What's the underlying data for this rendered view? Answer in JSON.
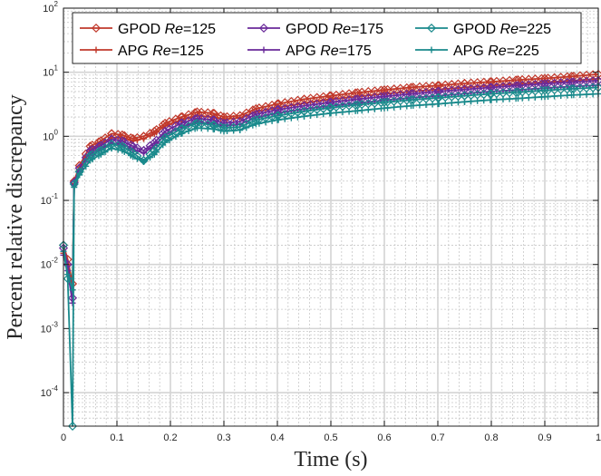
{
  "chart_data": {
    "type": "line",
    "title": "",
    "xlabel": "Time (s)",
    "ylabel": "Percent relative discrepancy",
    "xscale": "linear",
    "yscale": "log",
    "xlim": [
      0,
      1
    ],
    "ylim": [
      3e-05,
      100
    ],
    "grid": true,
    "minor_grid": true,
    "legend_position": "top",
    "legend_columns": 3,
    "x_ticks": [
      0,
      0.1,
      0.2,
      0.3,
      0.4,
      0.5,
      0.6,
      0.7,
      0.8,
      0.9,
      1
    ],
    "x_tick_labels": [
      "0",
      "0.1",
      "0.2",
      "0.3",
      "0.4",
      "0.5",
      "0.6",
      "0.7",
      "0.8",
      "0.9",
      "1"
    ],
    "y_ticks": [
      {
        "value": 0.0001,
        "base": "10",
        "exp": "-4"
      },
      {
        "value": 0.001,
        "base": "10",
        "exp": "-3"
      },
      {
        "value": 0.01,
        "base": "10",
        "exp": "-2"
      },
      {
        "value": 0.1,
        "base": "10",
        "exp": "-1"
      },
      {
        "value": 1,
        "base": "10",
        "exp": "0"
      },
      {
        "value": 10,
        "base": "10",
        "exp": "1"
      },
      {
        "value": 100,
        "base": "10",
        "exp": "2"
      }
    ],
    "series": [
      {
        "name": "GPOD Re=125",
        "method": "GPOD",
        "re_label": "Re",
        "re_value": "=125",
        "color": "#c1392b",
        "marker": "diamond",
        "points": [
          [
            0,
            0.02
          ],
          [
            0.008,
            0.012
          ],
          [
            0.017,
            0.005
          ],
          [
            0.02,
            0.2
          ],
          [
            0.03,
            0.35
          ],
          [
            0.05,
            0.7
          ],
          [
            0.07,
            0.85
          ],
          [
            0.09,
            1.1
          ],
          [
            0.11,
            1.05
          ],
          [
            0.13,
            0.92
          ],
          [
            0.15,
            1.0
          ],
          [
            0.17,
            1.2
          ],
          [
            0.19,
            1.6
          ],
          [
            0.22,
            2.0
          ],
          [
            0.25,
            2.4
          ],
          [
            0.28,
            2.3
          ],
          [
            0.3,
            2.0
          ],
          [
            0.33,
            2.1
          ],
          [
            0.36,
            2.7
          ],
          [
            0.4,
            3.2
          ],
          [
            0.45,
            3.8
          ],
          [
            0.5,
            4.3
          ],
          [
            0.55,
            4.8
          ],
          [
            0.6,
            5.3
          ],
          [
            0.65,
            5.8
          ],
          [
            0.7,
            6.2
          ],
          [
            0.75,
            6.7
          ],
          [
            0.8,
            7.1
          ],
          [
            0.85,
            7.6
          ],
          [
            0.9,
            8.0
          ],
          [
            0.95,
            8.6
          ],
          [
            1.0,
            9.3
          ]
        ]
      },
      {
        "name": "APG Re=125",
        "method": "APG",
        "re_label": "Re",
        "re_value": "=125",
        "color": "#c1392b",
        "marker": "plus",
        "points": [
          [
            0,
            0.015
          ],
          [
            0.008,
            0.01
          ],
          [
            0.017,
            0.004
          ],
          [
            0.02,
            0.18
          ],
          [
            0.03,
            0.3
          ],
          [
            0.05,
            0.6
          ],
          [
            0.07,
            0.75
          ],
          [
            0.09,
            0.95
          ],
          [
            0.11,
            0.95
          ],
          [
            0.13,
            0.85
          ],
          [
            0.15,
            0.92
          ],
          [
            0.17,
            1.1
          ],
          [
            0.19,
            1.45
          ],
          [
            0.22,
            1.8
          ],
          [
            0.25,
            2.1
          ],
          [
            0.28,
            2.0
          ],
          [
            0.3,
            1.85
          ],
          [
            0.33,
            1.95
          ],
          [
            0.36,
            2.4
          ],
          [
            0.4,
            2.8
          ],
          [
            0.45,
            3.3
          ],
          [
            0.5,
            3.8
          ],
          [
            0.55,
            4.2
          ],
          [
            0.6,
            4.6
          ],
          [
            0.65,
            5.0
          ],
          [
            0.7,
            5.4
          ],
          [
            0.75,
            5.8
          ],
          [
            0.8,
            6.2
          ],
          [
            0.85,
            6.6
          ],
          [
            0.9,
            7.0
          ],
          [
            0.95,
            7.4
          ],
          [
            1.0,
            7.9
          ]
        ]
      },
      {
        "name": "GPOD Re=175",
        "method": "GPOD",
        "re_label": "Re",
        "re_value": "=175",
        "color": "#6a2a9a",
        "marker": "diamond",
        "points": [
          [
            0,
            0.018
          ],
          [
            0.008,
            0.01
          ],
          [
            0.017,
            0.003
          ],
          [
            0.02,
            0.19
          ],
          [
            0.03,
            0.32
          ],
          [
            0.05,
            0.6
          ],
          [
            0.07,
            0.72
          ],
          [
            0.09,
            0.9
          ],
          [
            0.11,
            0.85
          ],
          [
            0.13,
            0.7
          ],
          [
            0.15,
            0.6
          ],
          [
            0.17,
            0.8
          ],
          [
            0.19,
            1.2
          ],
          [
            0.22,
            1.6
          ],
          [
            0.25,
            1.9
          ],
          [
            0.28,
            1.8
          ],
          [
            0.3,
            1.6
          ],
          [
            0.33,
            1.7
          ],
          [
            0.36,
            2.2
          ],
          [
            0.4,
            2.6
          ],
          [
            0.45,
            3.0
          ],
          [
            0.5,
            3.4
          ],
          [
            0.55,
            3.8
          ],
          [
            0.6,
            4.2
          ],
          [
            0.65,
            4.6
          ],
          [
            0.7,
            5.0
          ],
          [
            0.75,
            5.4
          ],
          [
            0.8,
            5.8
          ],
          [
            0.85,
            6.2
          ],
          [
            0.9,
            6.6
          ],
          [
            0.95,
            7.0
          ],
          [
            1.0,
            7.4
          ]
        ]
      },
      {
        "name": "APG Re=175",
        "method": "APG",
        "re_label": "Re",
        "re_value": "=175",
        "color": "#6a2a9a",
        "marker": "plus",
        "points": [
          [
            0,
            0.014
          ],
          [
            0.008,
            0.008
          ],
          [
            0.017,
            0.0025
          ],
          [
            0.02,
            0.17
          ],
          [
            0.03,
            0.28
          ],
          [
            0.05,
            0.5
          ],
          [
            0.07,
            0.62
          ],
          [
            0.09,
            0.78
          ],
          [
            0.11,
            0.75
          ],
          [
            0.13,
            0.62
          ],
          [
            0.15,
            0.55
          ],
          [
            0.17,
            0.72
          ],
          [
            0.19,
            1.05
          ],
          [
            0.22,
            1.4
          ],
          [
            0.25,
            1.65
          ],
          [
            0.28,
            1.6
          ],
          [
            0.3,
            1.45
          ],
          [
            0.33,
            1.55
          ],
          [
            0.36,
            1.95
          ],
          [
            0.4,
            2.3
          ],
          [
            0.45,
            2.65
          ],
          [
            0.5,
            3.0
          ],
          [
            0.55,
            3.3
          ],
          [
            0.6,
            3.65
          ],
          [
            0.65,
            4.0
          ],
          [
            0.7,
            4.3
          ],
          [
            0.75,
            4.65
          ],
          [
            0.8,
            5.0
          ],
          [
            0.85,
            5.3
          ],
          [
            0.9,
            5.65
          ],
          [
            0.95,
            6.0
          ],
          [
            1.0,
            6.3
          ]
        ]
      },
      {
        "name": "GPOD Re=225",
        "method": "GPOD",
        "re_label": "Re",
        "re_value": "=225",
        "color": "#1a8a8c",
        "marker": "diamond",
        "points": [
          [
            0,
            0.02
          ],
          [
            0.008,
            0.006
          ],
          [
            0.017,
            3e-05
          ],
          [
            0.02,
            0.18
          ],
          [
            0.03,
            0.28
          ],
          [
            0.05,
            0.5
          ],
          [
            0.07,
            0.6
          ],
          [
            0.09,
            0.75
          ],
          [
            0.11,
            0.7
          ],
          [
            0.13,
            0.55
          ],
          [
            0.15,
            0.42
          ],
          [
            0.17,
            0.6
          ],
          [
            0.19,
            0.95
          ],
          [
            0.22,
            1.3
          ],
          [
            0.25,
            1.6
          ],
          [
            0.28,
            1.5
          ],
          [
            0.3,
            1.35
          ],
          [
            0.33,
            1.4
          ],
          [
            0.36,
            1.8
          ],
          [
            0.4,
            2.1
          ],
          [
            0.45,
            2.45
          ],
          [
            0.5,
            2.8
          ],
          [
            0.55,
            3.1
          ],
          [
            0.6,
            3.4
          ],
          [
            0.65,
            3.7
          ],
          [
            0.7,
            4.0
          ],
          [
            0.75,
            4.3
          ],
          [
            0.8,
            4.6
          ],
          [
            0.85,
            4.9
          ],
          [
            0.9,
            5.2
          ],
          [
            0.95,
            5.5
          ],
          [
            1.0,
            5.8
          ]
        ]
      },
      {
        "name": "APG Re=225",
        "method": "APG",
        "re_label": "Re",
        "re_value": "=225",
        "color": "#1a8a8c",
        "marker": "plus",
        "points": [
          [
            0,
            0.016
          ],
          [
            0.008,
            0.007
          ],
          [
            0.017,
            0.004
          ],
          [
            0.02,
            0.16
          ],
          [
            0.03,
            0.25
          ],
          [
            0.05,
            0.42
          ],
          [
            0.07,
            0.52
          ],
          [
            0.09,
            0.65
          ],
          [
            0.11,
            0.6
          ],
          [
            0.13,
            0.48
          ],
          [
            0.15,
            0.4
          ],
          [
            0.17,
            0.52
          ],
          [
            0.19,
            0.8
          ],
          [
            0.22,
            1.1
          ],
          [
            0.25,
            1.35
          ],
          [
            0.28,
            1.3
          ],
          [
            0.3,
            1.2
          ],
          [
            0.33,
            1.25
          ],
          [
            0.36,
            1.55
          ],
          [
            0.4,
            1.8
          ],
          [
            0.45,
            2.05
          ],
          [
            0.5,
            2.3
          ],
          [
            0.55,
            2.5
          ],
          [
            0.6,
            2.75
          ],
          [
            0.65,
            3.0
          ],
          [
            0.7,
            3.2
          ],
          [
            0.75,
            3.45
          ],
          [
            0.8,
            3.7
          ],
          [
            0.85,
            3.9
          ],
          [
            0.9,
            4.15
          ],
          [
            0.95,
            4.4
          ],
          [
            1.0,
            4.6
          ]
        ]
      }
    ]
  }
}
